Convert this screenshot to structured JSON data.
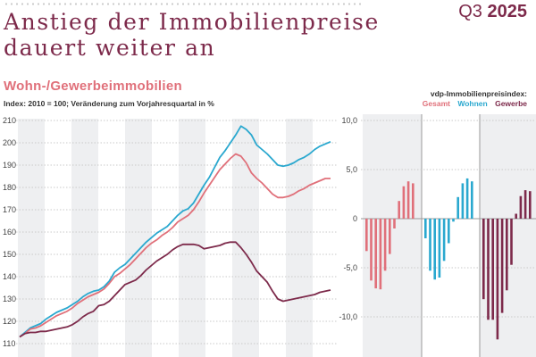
{
  "header": {
    "title_line1": "Anstieg der Immobilienpreise",
    "title_line2": "dauert weiter an",
    "issue_quarter": "Q3",
    "issue_year": "2025"
  },
  "subtitle": "Wohn-/Gewerbeimmobilien",
  "note": "Index: 2010 = 100; Veränderung zum Vorjahresquartal in %",
  "legend": {
    "title": "vdp-Immobilienpreisindex:",
    "items": [
      {
        "label": "Gesamt",
        "color": "#e0707a"
      },
      {
        "label": "Wohnen",
        "color": "#2aa8cf"
      },
      {
        "label": "Gewerbe",
        "color": "#7d2a4b"
      }
    ]
  },
  "chart_data": [
    {
      "type": "line",
      "title": "Wohn-/Gewerbeimmobilien",
      "ylabel": "Index: 2010 = 100",
      "ylim": [
        110,
        210
      ],
      "yticks": [
        "210",
        "200",
        "190",
        "180",
        "170",
        "160",
        "150",
        "140",
        "130",
        "120",
        "110"
      ],
      "grid": true,
      "x_count": 60,
      "series": [
        {
          "name": "Wohnen",
          "color": "#2aa8cf",
          "values": [
            113,
            115,
            117,
            118,
            119,
            121,
            122.5,
            124,
            125,
            126,
            127.5,
            129,
            131,
            132.5,
            133.5,
            134,
            135.5,
            138,
            142,
            144,
            145.5,
            148,
            150.5,
            153,
            155.5,
            157.5,
            159.5,
            161,
            162.5,
            165,
            167.5,
            169.5,
            170.5,
            173,
            177,
            181,
            184.5,
            189,
            193.5,
            196.5,
            200,
            203.5,
            207.5,
            206,
            203.5,
            199,
            197,
            195,
            192.5,
            190,
            189.5,
            190,
            191,
            192.5,
            193.5,
            195,
            197,
            198.5,
            199.5,
            200.5
          ]
        },
        {
          "name": "Gesamt",
          "color": "#e0707a",
          "values": [
            113,
            114.5,
            116.5,
            117,
            118,
            119.5,
            121,
            122.5,
            123.5,
            124.5,
            126,
            128,
            129.5,
            131,
            132,
            133,
            134.5,
            137,
            140,
            141.5,
            143.5,
            145.5,
            148,
            150.5,
            153,
            155,
            156.5,
            158.5,
            160,
            162,
            164.5,
            166,
            167.5,
            170,
            173.5,
            177.5,
            181,
            184.5,
            188,
            190.5,
            193,
            195,
            194,
            191,
            186.5,
            184,
            182,
            179.5,
            177,
            175.5,
            175.5,
            176,
            177,
            178.5,
            179.5,
            181,
            182,
            183,
            184,
            184
          ]
        },
        {
          "name": "Gewerbe",
          "color": "#7d2a4b",
          "values": [
            113,
            114.5,
            115,
            115,
            115.5,
            115.5,
            116,
            116.5,
            117,
            117.5,
            118.5,
            120,
            122,
            123.5,
            124.5,
            127,
            127.5,
            129,
            131.5,
            134,
            136.5,
            137.5,
            138.5,
            140.5,
            143,
            145,
            147,
            148.5,
            150,
            152,
            153.5,
            154.5,
            154.5,
            154.5,
            154,
            152.5,
            153,
            153.5,
            154,
            155,
            155.5,
            155.5,
            153,
            150,
            146.5,
            142.5,
            140,
            137.5,
            133.5,
            130,
            129,
            129.5,
            130,
            130.5,
            131,
            131.5,
            132,
            133,
            133.5,
            134
          ]
        }
      ]
    },
    {
      "type": "bar",
      "title": "Veränderung zum Vorjahresquartal in %",
      "ylim": [
        -14,
        10
      ],
      "yticks": [
        "10,0",
        "5,0",
        "0",
        "-5,0",
        "-10,0"
      ],
      "grid": true,
      "series": [
        {
          "name": "Gesamt",
          "color": "#e0707a",
          "values": [
            -3.3,
            -6.3,
            -7.1,
            -7.2,
            -5.3,
            -3.6,
            -1.0,
            1.8,
            3.3,
            3.8,
            3.6,
            0
          ]
        },
        {
          "name": "Wohnen",
          "color": "#2aa8cf",
          "values": [
            -2.0,
            -5.3,
            -6.2,
            -6.0,
            -4.3,
            -2.5,
            -0.3,
            2.2,
            3.6,
            4.1,
            3.8,
            0
          ]
        },
        {
          "name": "Gewerbe",
          "color": "#7d2a4b",
          "values": [
            -8.2,
            -10.3,
            -10.3,
            -12.3,
            -9.6,
            -7.3,
            -4.7,
            0.5,
            2.3,
            2.9,
            2.8,
            0
          ]
        }
      ]
    }
  ]
}
